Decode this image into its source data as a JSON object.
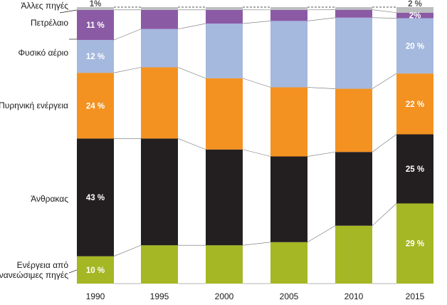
{
  "chart_data": {
    "type": "bar",
    "stacked": true,
    "percent": true,
    "categories": [
      "1990",
      "1995",
      "2000",
      "2005",
      "2010",
      "2015"
    ],
    "series": [
      {
        "name": "Ενέργεια από ανανεώσιμες πηγές",
        "label_lines": [
          "Ενέργεια από",
          "ανανεώσιμες πηγές"
        ],
        "color": "#a5b724",
        "values": [
          10,
          14,
          14,
          15,
          22,
          29
        ],
        "data_labels": [
          "10 %",
          "",
          "",
          "",
          "",
          "29 %"
        ],
        "label_color": "#ffffff"
      },
      {
        "name": "Άνθρακας",
        "label_lines": [
          "Άνθρακας"
        ],
        "color": "#231f20",
        "values": [
          43,
          39,
          35,
          31,
          28,
          25
        ],
        "data_labels": [
          "43 %",
          "",
          "",
          "",
          "",
          "25 %"
        ],
        "label_color": "#ffffff"
      },
      {
        "name": "Πυρηνική ενέργεια",
        "label_lines": [
          "Πυρηνική ενέργεια"
        ],
        "color": "#f39221",
        "values": [
          24,
          26,
          26,
          25,
          24,
          22
        ],
        "data_labels": [
          "24 %",
          "",
          "",
          "",
          "",
          "22 %"
        ],
        "label_color": "#ffffff"
      },
      {
        "name": "Φυσικό αέριο",
        "label_lines": [
          "Φυσικό αέριο"
        ],
        "color": "#a5b8dd",
        "values": [
          12,
          14,
          20,
          24,
          27,
          20
        ],
        "data_labels": [
          "12 %",
          "",
          "",
          "",
          "",
          "20 %"
        ],
        "label_color": "#ffffff"
      },
      {
        "name": "Πετρέλαιο",
        "label_lines": [
          "Πετρέλαιο"
        ],
        "color": "#8b5aa5",
        "values": [
          11,
          7,
          5,
          4,
          3,
          2
        ],
        "data_labels": [
          "11 %",
          "",
          "",
          "",
          "",
          "2%"
        ],
        "label_color": "#ffffff"
      },
      {
        "name": "Άλλες πηγές",
        "label_lines": [
          "Άλλες πηγές"
        ],
        "color": "#bcbec0",
        "values": [
          1,
          1,
          1,
          1,
          1,
          2
        ],
        "data_labels": [
          "1%",
          "",
          "",
          "",
          "",
          "2 %"
        ],
        "label_color": "#555555"
      }
    ],
    "ylim": [
      0,
      100
    ],
    "legend": "left",
    "grid": false,
    "connector_lines": true
  }
}
